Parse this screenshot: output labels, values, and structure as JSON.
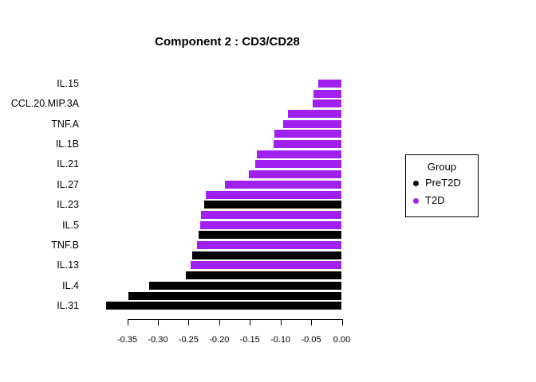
{
  "chart_data": {
    "type": "bar",
    "orientation": "horizontal",
    "title": "Component 2 : CD3/CD28",
    "xlabel": "",
    "ylabel": "",
    "xlim": [
      -0.4,
      0
    ],
    "grid": false,
    "x_ticks": [
      -0.35,
      -0.3,
      -0.25,
      -0.2,
      -0.15,
      -0.1,
      -0.05,
      0.0
    ],
    "x_tick_labels": [
      "-0.35",
      "-0.30",
      "-0.25",
      "-0.20",
      "-0.15",
      "-0.10",
      "-0.05",
      "0.00"
    ],
    "group_colors": {
      "PreT2D": "#000000",
      "T2D": "#A020F0"
    },
    "bars": [
      {
        "label": "IL.15",
        "value": -0.038,
        "group": "T2D"
      },
      {
        "label": "",
        "value": -0.046,
        "group": "T2D"
      },
      {
        "label": "CCL.20.MIP.3A",
        "value": -0.048,
        "group": "T2D"
      },
      {
        "label": "",
        "value": -0.088,
        "group": "T2D"
      },
      {
        "label": "TNF.A",
        "value": -0.096,
        "group": "T2D"
      },
      {
        "label": "",
        "value": -0.11,
        "group": "T2D"
      },
      {
        "label": "IL.1B",
        "value": -0.111,
        "group": "T2D"
      },
      {
        "label": "",
        "value": -0.139,
        "group": "T2D"
      },
      {
        "label": "IL.21",
        "value": -0.141,
        "group": "T2D"
      },
      {
        "label": "",
        "value": -0.151,
        "group": "T2D"
      },
      {
        "label": "IL.27",
        "value": -0.191,
        "group": "T2D"
      },
      {
        "label": "",
        "value": -0.222,
        "group": "T2D"
      },
      {
        "label": "IL.23",
        "value": -0.224,
        "group": "PreT2D"
      },
      {
        "label": "",
        "value": -0.23,
        "group": "T2D"
      },
      {
        "label": "IL.5",
        "value": -0.231,
        "group": "T2D"
      },
      {
        "label": "",
        "value": -0.234,
        "group": "PreT2D"
      },
      {
        "label": "TNF.B",
        "value": -0.236,
        "group": "T2D"
      },
      {
        "label": "",
        "value": -0.244,
        "group": "PreT2D"
      },
      {
        "label": "IL.13",
        "value": -0.246,
        "group": "T2D"
      },
      {
        "label": "",
        "value": -0.254,
        "group": "PreT2D"
      },
      {
        "label": "IL.4",
        "value": -0.314,
        "group": "PreT2D"
      },
      {
        "label": "",
        "value": -0.348,
        "group": "PreT2D"
      },
      {
        "label": "IL.31",
        "value": -0.384,
        "group": "PreT2D"
      }
    ],
    "legend_position": "right"
  },
  "legend": {
    "title": "Group",
    "items": [
      {
        "label": "PreT2D",
        "color": "#000000"
      },
      {
        "label": "T2D",
        "color": "#A020F0"
      }
    ]
  }
}
